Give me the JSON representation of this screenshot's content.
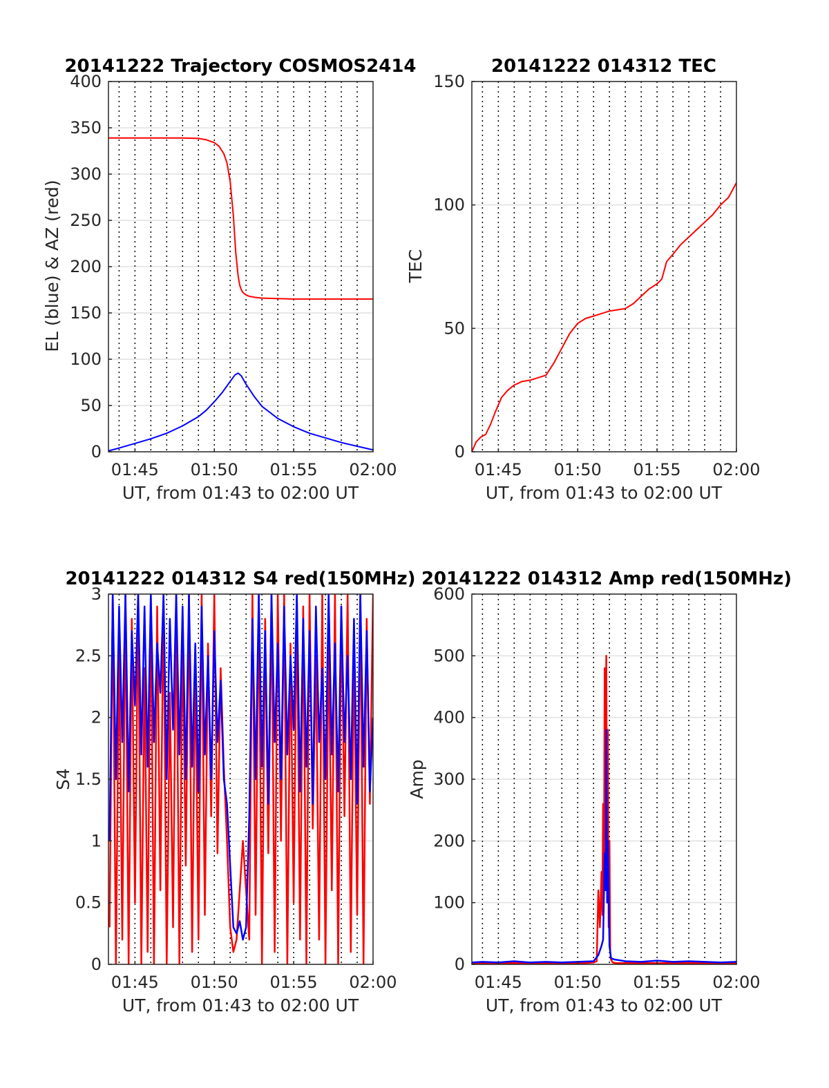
{
  "colors": {
    "azimuth": "#ff0000",
    "elevation": "#0000ff",
    "tec": "#ff0000",
    "red_channel": "#ff0000",
    "blue_channel": "#0000ff"
  },
  "chart_data": [
    {
      "id": "trajectory",
      "type": "line",
      "title": "20141222 Trajectory COSMOS2414",
      "xlabel": "UT, from 01:43 to 02:00 UT",
      "ylabel": "EL (blue) & AZ (red)",
      "xlim": [
        103.33,
        120
      ],
      "ylim": [
        0,
        400
      ],
      "yticks": [
        0,
        50,
        100,
        150,
        200,
        250,
        300,
        350,
        400
      ],
      "ytick_labels": [
        "0",
        "50",
        "100",
        "150",
        "200",
        "250",
        "300",
        "350",
        "400"
      ],
      "xticks": [
        105,
        110,
        115,
        120
      ],
      "xtick_labels": [
        "01:45",
        "01:50",
        "01:55",
        "02:00"
      ],
      "grid": "dotted vertical every minute, horizontal at y ticks",
      "series": [
        {
          "color": "#ff0000",
          "x": [
            103.33,
            104,
            105,
            106,
            107,
            108,
            109,
            109.5,
            110,
            110.3,
            110.6,
            110.8,
            111,
            111.2,
            111.35,
            111.5,
            111.6,
            111.7,
            111.8,
            112,
            112.2,
            112.5,
            113,
            114,
            115,
            116,
            118,
            120
          ],
          "values": [
            339,
            339,
            339,
            339,
            339,
            339,
            338.5,
            337,
            334,
            330,
            322,
            312,
            292,
            255,
            215,
            190,
            180,
            175,
            172,
            169.5,
            168,
            167,
            166,
            165.5,
            165,
            165,
            165,
            165
          ]
        },
        {
          "color": "#0000ff",
          "x": [
            103.33,
            104,
            105,
            106,
            107,
            108,
            109,
            109.5,
            110,
            110.5,
            111,
            111.3,
            111.5,
            111.7,
            112,
            112.5,
            113,
            114,
            115,
            116,
            117,
            118,
            119,
            119.5,
            120
          ],
          "values": [
            1,
            4,
            9,
            14,
            20,
            28,
            38,
            45,
            54,
            64,
            76,
            83,
            85,
            82,
            73,
            60,
            49,
            36,
            27,
            20,
            15,
            10,
            6,
            4,
            2
          ]
        }
      ]
    },
    {
      "id": "tec",
      "type": "line",
      "title": "20141222 014312 TEC",
      "xlabel": "UT, from 01:43 to 02:00 UT",
      "ylabel": "TEC",
      "xlim": [
        103.33,
        120
      ],
      "ylim": [
        0,
        150
      ],
      "yticks": [
        0,
        50,
        100,
        150
      ],
      "ytick_labels": [
        "0",
        "50",
        "100",
        "150"
      ],
      "xticks": [
        105,
        110,
        115,
        120
      ],
      "xtick_labels": [
        "01:45",
        "01:50",
        "01:55",
        "02:00"
      ],
      "series": [
        {
          "color": "#ff0000",
          "x": [
            103.33,
            103.6,
            103.9,
            104.2,
            104.5,
            104.8,
            105.2,
            105.6,
            106,
            106.5,
            107,
            107.5,
            108,
            108.5,
            109,
            109.5,
            110,
            110.5,
            111,
            111.5,
            112,
            112.5,
            113,
            113.5,
            114,
            114.5,
            115,
            115.3,
            115.6,
            116,
            116.5,
            117,
            117.5,
            118,
            118.5,
            119,
            119.5,
            120
          ],
          "values": [
            0,
            4,
            6,
            7,
            11,
            16,
            22,
            25,
            27,
            28.5,
            29,
            30,
            31,
            36,
            42,
            48,
            52,
            54,
            55,
            56,
            57,
            57.5,
            58,
            60,
            63,
            66,
            68,
            70,
            77,
            80,
            84,
            87,
            90,
            93,
            96,
            100,
            103,
            109
          ]
        }
      ]
    },
    {
      "id": "s4",
      "type": "line",
      "title": "20141222 014312 S4 red(150MHz)",
      "xlabel": "UT, from 01:43 to 02:00 UT",
      "ylabel": "S4",
      "xlim": [
        103.33,
        120
      ],
      "ylim": [
        0,
        3
      ],
      "yticks": [
        0,
        0.5,
        1,
        1.5,
        2,
        2.5,
        3
      ],
      "ytick_labels": [
        "0",
        "0.5",
        "1",
        "1.5",
        "2",
        "2.5",
        "3"
      ],
      "xticks": [
        105,
        110,
        115,
        120
      ],
      "xtick_labels": [
        "01:45",
        "01:50",
        "01:55",
        "02:00"
      ],
      "series": [
        {
          "color": "#ff0000",
          "x": [
            103.4,
            103.6,
            103.8,
            104,
            104.2,
            104.4,
            104.6,
            104.8,
            105,
            105.2,
            105.4,
            105.6,
            105.8,
            106,
            106.2,
            106.4,
            106.6,
            106.8,
            107,
            107.2,
            107.4,
            107.6,
            107.8,
            108,
            108.2,
            108.4,
            108.6,
            108.8,
            109,
            109.2,
            109.4,
            109.6,
            109.8,
            110,
            110.2,
            110.4,
            110.6,
            110.8,
            111,
            111.2,
            111.4,
            111.6,
            111.8,
            112,
            112.2,
            112.4,
            112.6,
            112.8,
            113,
            113.2,
            113.4,
            113.6,
            113.8,
            114,
            114.2,
            114.4,
            114.6,
            114.8,
            115,
            115.2,
            115.4,
            115.6,
            115.8,
            116,
            116.2,
            116.4,
            116.6,
            116.8,
            117,
            117.2,
            117.4,
            117.6,
            117.8,
            118,
            118.2,
            118.4,
            118.6,
            118.8,
            119,
            119.2,
            119.4,
            119.6,
            119.8,
            120
          ],
          "values": [
            0.3,
            3,
            0,
            2.6,
            0.2,
            3,
            0,
            2.8,
            0.5,
            3,
            0,
            2.4,
            0.1,
            3,
            0,
            2.9,
            0.6,
            3,
            0,
            2.2,
            0.3,
            3,
            0,
            2.7,
            0.8,
            3,
            0.1,
            2.5,
            0.2,
            3,
            0.4,
            2.6,
            1.2,
            3,
            0.9,
            2.4,
            1.6,
            1.0,
            0.3,
            0.1,
            0.2,
            0.6,
            1.0,
            0.6,
            0.2,
            3,
            0.4,
            3,
            0,
            2.8,
            0.9,
            3,
            0.1,
            3,
            1.0,
            3,
            0,
            2.6,
            0.5,
            3,
            0.2,
            2.9,
            0,
            3,
            1.1,
            2.5,
            0.2,
            3,
            0,
            2.7,
            0.6,
            3,
            0,
            2.9,
            1.2,
            3,
            0.1,
            2.6,
            0.4,
            3,
            0,
            2.8,
            1.3,
            3
          ]
        },
        {
          "color": "#0000ff",
          "x": [
            103.4,
            103.6,
            103.8,
            104,
            104.2,
            104.4,
            104.6,
            104.8,
            105,
            105.2,
            105.4,
            105.6,
            105.8,
            106,
            106.2,
            106.4,
            106.6,
            106.8,
            107,
            107.2,
            107.4,
            107.6,
            107.8,
            108,
            108.2,
            108.4,
            108.6,
            108.8,
            109,
            109.2,
            109.4,
            109.6,
            109.8,
            110,
            110.2,
            110.4,
            110.6,
            110.8,
            111,
            111.2,
            111.4,
            111.6,
            111.8,
            112,
            112.2,
            112.4,
            112.6,
            112.8,
            113,
            113.2,
            113.4,
            113.6,
            113.8,
            114,
            114.2,
            114.4,
            114.6,
            114.8,
            115,
            115.2,
            115.4,
            115.6,
            115.8,
            116,
            116.2,
            116.4,
            116.6,
            116.8,
            117,
            117.2,
            117.4,
            117.6,
            117.8,
            118,
            118.2,
            118.4,
            118.6,
            118.8,
            119,
            119.2,
            119.4,
            119.6,
            119.8,
            120
          ],
          "values": [
            1.0,
            3,
            1.5,
            2.9,
            1.8,
            3,
            1.4,
            2.7,
            2.1,
            3,
            1.7,
            2.9,
            1.6,
            3,
            1.8,
            2.6,
            2.2,
            3,
            1.5,
            2.8,
            1.9,
            3,
            1.7,
            2.9,
            1.5,
            3,
            1.6,
            2.6,
            1.4,
            2.9,
            1.7,
            2.5,
            1.5,
            2.7,
            1.8,
            2.3,
            1.5,
            1.3,
            0.8,
            0.3,
            0.25,
            0.35,
            0.2,
            0.3,
            1.2,
            2.8,
            1.5,
            3,
            1.6,
            2.7,
            1.3,
            3,
            1.8,
            2.6,
            1.5,
            2.9,
            1.7,
            2.5,
            1.9,
            3,
            1.4,
            2.8,
            1.6,
            2.7,
            1.3,
            2.9,
            1.8,
            2.4,
            1.5,
            3,
            1.7,
            2.6,
            1.4,
            2.9,
            1.8,
            2.5,
            1.5,
            2.8,
            1.3,
            3,
            1.6,
            2.7,
            1.4,
            2.0
          ]
        }
      ]
    },
    {
      "id": "amp",
      "type": "line",
      "title": "20141222 014312 Amp red(150MHz)",
      "xlabel": "UT, from 01:43 to 02:00 UT",
      "ylabel": "Amp",
      "xlim": [
        103.33,
        120
      ],
      "ylim": [
        0,
        600
      ],
      "yticks": [
        0,
        100,
        200,
        300,
        400,
        500,
        600
      ],
      "ytick_labels": [
        "0",
        "100",
        "200",
        "300",
        "400",
        "500",
        "600"
      ],
      "xticks": [
        105,
        110,
        115,
        120
      ],
      "xtick_labels": [
        "01:45",
        "01:50",
        "01:55",
        "02:00"
      ],
      "series": [
        {
          "color": "#ff0000",
          "x": [
            103.33,
            110.5,
            111,
            111.2,
            111.3,
            111.4,
            111.5,
            111.55,
            111.6,
            111.65,
            111.7,
            111.75,
            111.8,
            111.85,
            111.9,
            111.95,
            112.0,
            112.05,
            112.1,
            112.2,
            112.4,
            120
          ],
          "values": [
            2,
            2,
            3,
            5,
            120,
            60,
            150,
            80,
            260,
            120,
            480,
            200,
            500,
            150,
            380,
            60,
            200,
            20,
            8,
            3,
            2,
            2
          ]
        },
        {
          "color": "#0000ff",
          "x": [
            103.33,
            104,
            105,
            106,
            107,
            108,
            109,
            110,
            111,
            111.3,
            111.5,
            111.6,
            111.7,
            111.75,
            111.8,
            111.85,
            111.9,
            112.0,
            112.1,
            112.3,
            113,
            114,
            115,
            116,
            117,
            118,
            119,
            120
          ],
          "values": [
            3,
            4,
            3,
            5,
            3,
            4,
            3,
            4,
            5,
            15,
            30,
            40,
            180,
            120,
            380,
            100,
            200,
            30,
            10,
            8,
            5,
            4,
            6,
            4,
            5,
            4,
            3,
            4
          ]
        }
      ]
    }
  ]
}
